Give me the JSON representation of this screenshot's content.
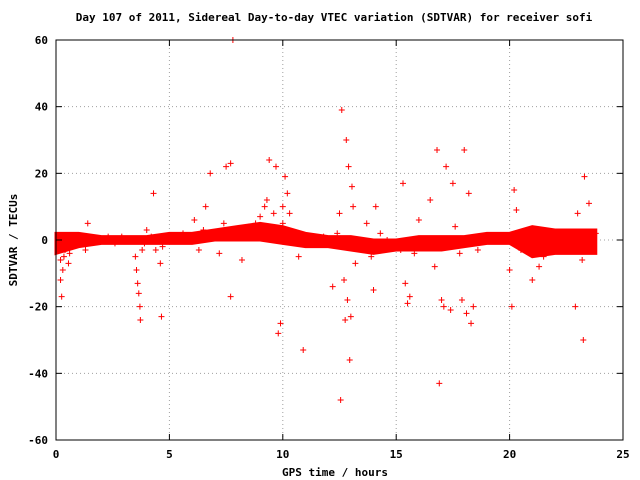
{
  "chart_data": {
    "type": "scatter",
    "title": "Day 107 of 2011, Sidereal Day-to-day VTEC variation (SDTVAR) for receiver sofi",
    "xlabel": "GPS time / hours",
    "ylabel": "SDTVAR / TECUs",
    "xlim": [
      0,
      25
    ],
    "ylim": [
      -60,
      60
    ],
    "xticks": [
      0,
      5,
      10,
      15,
      20,
      25
    ],
    "yticks": [
      -60,
      -40,
      -20,
      0,
      20,
      40,
      60
    ],
    "grid": true,
    "marker": "+",
    "color": "#ff0000",
    "points": [
      [
        0.1,
        -1
      ],
      [
        0.15,
        -2
      ],
      [
        0.2,
        -6
      ],
      [
        0.2,
        -12
      ],
      [
        0.25,
        -17
      ],
      [
        0.3,
        -9
      ],
      [
        0.35,
        -5
      ],
      [
        0.4,
        -3
      ],
      [
        0.5,
        -2
      ],
      [
        0.55,
        -7
      ],
      [
        0.6,
        -4
      ],
      [
        0.7,
        -1
      ],
      [
        0.8,
        0
      ],
      [
        1.0,
        1
      ],
      [
        1.3,
        -3
      ],
      [
        1.4,
        5
      ],
      [
        1.5,
        -1
      ],
      [
        1.7,
        0
      ],
      [
        2.0,
        0
      ],
      [
        2.3,
        1
      ],
      [
        2.6,
        -1
      ],
      [
        2.9,
        1
      ],
      [
        3.2,
        0
      ],
      [
        3.5,
        -5
      ],
      [
        3.55,
        -9
      ],
      [
        3.6,
        -13
      ],
      [
        3.65,
        -16
      ],
      [
        3.7,
        -20
      ],
      [
        3.72,
        -24
      ],
      [
        3.8,
        -3
      ],
      [
        3.9,
        -1
      ],
      [
        4.0,
        3
      ],
      [
        4.2,
        1
      ],
      [
        4.3,
        14
      ],
      [
        4.4,
        -3
      ],
      [
        4.6,
        -7
      ],
      [
        4.65,
        -23
      ],
      [
        4.7,
        -2
      ],
      [
        5.0,
        0
      ],
      [
        5.3,
        1
      ],
      [
        5.6,
        2
      ],
      [
        5.9,
        1
      ],
      [
        6.1,
        6
      ],
      [
        6.3,
        -3
      ],
      [
        6.5,
        3
      ],
      [
        6.6,
        10
      ],
      [
        6.8,
        20
      ],
      [
        7.0,
        2
      ],
      [
        7.2,
        -4
      ],
      [
        7.4,
        5
      ],
      [
        7.5,
        22
      ],
      [
        7.7,
        23
      ],
      [
        7.7,
        -17
      ],
      [
        7.8,
        60
      ],
      [
        7.9,
        3
      ],
      [
        8.2,
        -6
      ],
      [
        8.5,
        4
      ],
      [
        8.8,
        5
      ],
      [
        9.0,
        7
      ],
      [
        9.2,
        10
      ],
      [
        9.3,
        12
      ],
      [
        9.4,
        24
      ],
      [
        9.6,
        8
      ],
      [
        9.7,
        22
      ],
      [
        9.8,
        -28
      ],
      [
        9.9,
        -25
      ],
      [
        10.0,
        10
      ],
      [
        10.0,
        5
      ],
      [
        10.1,
        19
      ],
      [
        10.2,
        14
      ],
      [
        10.3,
        8
      ],
      [
        10.5,
        2
      ],
      [
        10.7,
        -5
      ],
      [
        10.9,
        -33
      ],
      [
        11.2,
        -1
      ],
      [
        11.5,
        0
      ],
      [
        11.8,
        1
      ],
      [
        12.0,
        0
      ],
      [
        12.2,
        -14
      ],
      [
        12.4,
        2
      ],
      [
        12.5,
        8
      ],
      [
        12.55,
        -48
      ],
      [
        12.6,
        39
      ],
      [
        12.7,
        -12
      ],
      [
        12.75,
        -24
      ],
      [
        12.8,
        30
      ],
      [
        12.85,
        -18
      ],
      [
        12.9,
        22
      ],
      [
        12.95,
        -36
      ],
      [
        13.0,
        -23
      ],
      [
        13.05,
        16
      ],
      [
        13.1,
        10
      ],
      [
        13.2,
        -7
      ],
      [
        13.3,
        0
      ],
      [
        13.5,
        -3
      ],
      [
        13.7,
        5
      ],
      [
        13.9,
        -5
      ],
      [
        14.0,
        -15
      ],
      [
        14.1,
        10
      ],
      [
        14.3,
        2
      ],
      [
        14.6,
        0
      ],
      [
        15.0,
        -1
      ],
      [
        15.2,
        -3
      ],
      [
        15.3,
        17
      ],
      [
        15.4,
        -13
      ],
      [
        15.5,
        -19
      ],
      [
        15.6,
        -17
      ],
      [
        15.8,
        -4
      ],
      [
        16.0,
        6
      ],
      [
        16.2,
        -2
      ],
      [
        16.5,
        12
      ],
      [
        16.7,
        -8
      ],
      [
        16.8,
        27
      ],
      [
        16.9,
        -43
      ],
      [
        17.0,
        -18
      ],
      [
        17.1,
        -20
      ],
      [
        17.2,
        22
      ],
      [
        17.4,
        -21
      ],
      [
        17.5,
        17
      ],
      [
        17.6,
        4
      ],
      [
        17.8,
        -4
      ],
      [
        17.9,
        -18
      ],
      [
        18.0,
        27
      ],
      [
        18.1,
        -22
      ],
      [
        18.2,
        14
      ],
      [
        18.3,
        -25
      ],
      [
        18.4,
        -20
      ],
      [
        18.6,
        -3
      ],
      [
        19.0,
        0
      ],
      [
        19.5,
        1
      ],
      [
        20.0,
        -9
      ],
      [
        20.1,
        -20
      ],
      [
        20.2,
        15
      ],
      [
        20.3,
        9
      ],
      [
        20.5,
        -3
      ],
      [
        21.0,
        -12
      ],
      [
        21.3,
        -8
      ],
      [
        21.5,
        -5
      ],
      [
        22.0,
        0
      ],
      [
        22.3,
        1
      ],
      [
        22.7,
        -3
      ],
      [
        22.9,
        -20
      ],
      [
        23.0,
        8
      ],
      [
        23.2,
        -6
      ],
      [
        23.25,
        -30
      ],
      [
        23.3,
        19
      ],
      [
        23.5,
        11
      ],
      [
        23.8,
        2
      ]
    ],
    "band": {
      "x": [
        0.0,
        1.0,
        2.0,
        3.0,
        4.0,
        5.0,
        6.0,
        7.0,
        8.0,
        9.0,
        10.0,
        11.0,
        12.0,
        13.0,
        14.0,
        15.0,
        16.0,
        17.0,
        18.0,
        19.0,
        20.0,
        21.0,
        22.0,
        23.0,
        23.8
      ],
      "low": [
        -4,
        -2,
        -1,
        -1,
        -1,
        -1,
        -1,
        0,
        0,
        0,
        -1,
        -2,
        -2,
        -3,
        -4,
        -3,
        -3,
        -3,
        -2,
        -1,
        -1,
        -5,
        -4,
        -4,
        -4
      ],
      "high": [
        2,
        2,
        1,
        1,
        1,
        2,
        2,
        3,
        4,
        5,
        4,
        2,
        1,
        1,
        0,
        0,
        1,
        1,
        1,
        2,
        2,
        4,
        3,
        3,
        3
      ]
    }
  }
}
